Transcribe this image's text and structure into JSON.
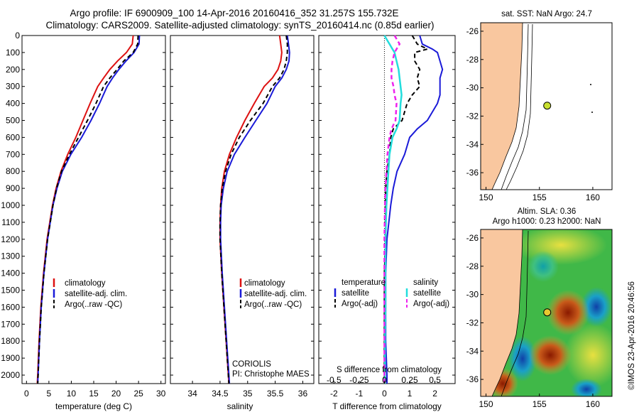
{
  "header": {
    "title_line1": "Argo profile: IF 6900909_100 14-Apr-2016 20160416_352 31.257S 155.732E",
    "title_line2": "Climatology: CARS2009. Satellite-adjusted climatology: synTS_20160414.nc (0.85d earlier)"
  },
  "colors": {
    "climatology": "#dd1111",
    "satellite": "#1a1ad8",
    "argo": "#000000",
    "cyan": "#22dddd",
    "magenta": "#ee22ee",
    "land": "#f9c79f"
  },
  "chart_data": [
    {
      "type": "line",
      "name": "temperature-profile",
      "xlabel": "temperature (deg C)",
      "xlim": [
        -1,
        31
      ],
      "xticks": [
        "0",
        "5",
        "10",
        "15",
        "20",
        "25",
        "30"
      ],
      "ylim": [
        0,
        2050
      ],
      "yticks": [
        "0",
        "100",
        "200",
        "300",
        "400",
        "500",
        "600",
        "700",
        "800",
        "900",
        "1000",
        "1100",
        "1200",
        "1300",
        "1400",
        "1500",
        "1600",
        "1700",
        "1800",
        "1900",
        "2000"
      ],
      "legend": [
        "climatology",
        "satellite-adj. clim.",
        "Argo(..raw -QC)"
      ],
      "depth": [
        0,
        50,
        100,
        150,
        200,
        250,
        300,
        400,
        500,
        600,
        700,
        800,
        900,
        1000,
        1200,
        1400,
        1600,
        1800,
        2000,
        2050
      ],
      "series": [
        {
          "name": "climatology",
          "values": [
            23.8,
            23.6,
            22.3,
            20.3,
            18.6,
            17.2,
            15.9,
            14.2,
            12.6,
            11.0,
            9.2,
            7.7,
            6.6,
            5.8,
            4.6,
            3.8,
            3.2,
            2.8,
            2.5,
            2.4
          ]
        },
        {
          "name": "satellite-adj. clim.",
          "values": [
            25.2,
            25.1,
            24.0,
            22.2,
            20.6,
            19.2,
            18.0,
            16.3,
            14.4,
            12.3,
            9.9,
            8.0,
            6.8,
            5.9,
            4.7,
            3.9,
            3.3,
            2.9,
            2.6,
            2.5
          ]
        },
        {
          "name": "Argo(..raw -QC)",
          "values": [
            24.9,
            24.8,
            23.8,
            21.7,
            20.2,
            18.6,
            17.2,
            15.5,
            13.6,
            11.6,
            9.6,
            7.8,
            6.7,
            5.9,
            4.7,
            3.9,
            3.3,
            2.9,
            2.6,
            2.5
          ]
        }
      ]
    },
    {
      "type": "line",
      "name": "salinity-profile",
      "xlabel": "salinity",
      "xlim": [
        33.6,
        36.2
      ],
      "xticks": [
        "34",
        "34.5",
        "35",
        "35.5",
        "36"
      ],
      "ylim": [
        0,
        2050
      ],
      "legend": [
        "climatology",
        "satellite-adj. clim.",
        "Argo(..raw -QC)"
      ],
      "annotation": [
        "CORIOLIS",
        "PI: Christophe MAES"
      ],
      "depth": [
        0,
        50,
        100,
        150,
        200,
        250,
        300,
        400,
        500,
        600,
        700,
        800,
        900,
        1000,
        1100,
        1200,
        1400,
        1600,
        1800,
        2000,
        2050
      ],
      "series": [
        {
          "name": "climatology",
          "values": [
            35.58,
            35.6,
            35.62,
            35.6,
            35.55,
            35.45,
            35.3,
            35.12,
            34.95,
            34.8,
            34.67,
            34.58,
            34.53,
            34.51,
            34.5,
            34.5,
            34.53,
            34.57,
            34.61,
            34.65,
            34.66
          ]
        },
        {
          "name": "satellite-adj. clim.",
          "values": [
            35.72,
            35.74,
            35.76,
            35.75,
            35.7,
            35.62,
            35.5,
            35.35,
            35.15,
            34.95,
            34.76,
            34.63,
            34.56,
            34.52,
            34.51,
            34.51,
            34.54,
            34.58,
            34.62,
            34.66,
            34.67
          ]
        },
        {
          "name": "Argo(..raw -QC)",
          "values": [
            35.7,
            35.72,
            35.72,
            35.7,
            35.66,
            35.58,
            35.45,
            35.28,
            35.05,
            34.85,
            34.7,
            34.6,
            34.54,
            34.51,
            34.5,
            34.5,
            34.53,
            34.57,
            34.61,
            34.65,
            34.66
          ]
        }
      ]
    },
    {
      "type": "line",
      "name": "difference-profile",
      "xlabel": "T difference from climatology",
      "xlabel_top": "S difference from climatology",
      "xlim": [
        -2.6,
        2.8
      ],
      "xticks": [
        "-2",
        "-1",
        "0",
        "1",
        "2"
      ],
      "sticks": [
        "-0.5",
        "-0.25",
        "0",
        "0.25",
        "0.5"
      ],
      "ylim": [
        0,
        2050
      ],
      "legend_titles": [
        "temperature",
        "salinity"
      ],
      "legend": [
        "satellite",
        "Argo(-adj)",
        "satellite",
        "Argo(-adj)"
      ],
      "depth": [
        0,
        50,
        80,
        100,
        150,
        200,
        250,
        300,
        350,
        400,
        500,
        550,
        600,
        700,
        800,
        900,
        1000,
        1200,
        1400,
        1600,
        1800,
        2000,
        2050
      ],
      "series": [
        {
          "name": "satellite",
          "quantity": "T",
          "values": [
            1.4,
            1.5,
            1.9,
            2.1,
            2.2,
            2.3,
            2.2,
            2.2,
            2.2,
            2.1,
            1.7,
            1.3,
            1.0,
            0.8,
            0.5,
            0.35,
            0.25,
            0.1,
            0.05,
            0.05,
            0.05,
            0.1,
            0.1
          ]
        },
        {
          "name": "Argo(-adj)",
          "quantity": "T",
          "values": [
            1.1,
            1.3,
            1.7,
            1.2,
            1.2,
            1.4,
            1.3,
            1.4,
            1.1,
            0.9,
            0.7,
            0.35,
            0.25,
            0.2,
            0.1,
            0.05,
            0.05,
            0.05,
            0.0,
            0.0,
            0.0,
            0.0,
            0.0
          ]
        },
        {
          "name": "satellite",
          "quantity": "S",
          "values": [
            0.0,
            0.05,
            0.08,
            0.1,
            0.12,
            0.14,
            0.15,
            0.16,
            0.17,
            0.16,
            0.15,
            0.12,
            0.08,
            0.05,
            0.04,
            0.03,
            0.02,
            0.01,
            0.01,
            0.01,
            0.005,
            0.005,
            0.005
          ]
        },
        {
          "name": "Argo(-adj)",
          "quantity": "S",
          "values": [
            0.1,
            0.15,
            0.12,
            0.1,
            0.08,
            0.07,
            0.07,
            0.09,
            0.1,
            0.12,
            0.11,
            0.07,
            0.05,
            0.03,
            0.02,
            0.01,
            0.005,
            0.0,
            0.0,
            0.0,
            0.0,
            0.0,
            0.0
          ]
        }
      ]
    },
    {
      "type": "scatter",
      "name": "sst-map",
      "title": "sat. SST: NaN Argo: 24.7",
      "xlim": [
        149.5,
        161.8
      ],
      "ylim": [
        -37.2,
        -25.4
      ],
      "xticks": [
        "150",
        "155",
        "160"
      ],
      "yticks": [
        "-26",
        "-28",
        "-30",
        "-32",
        "-34",
        "-36"
      ],
      "point": {
        "lon": 155.73,
        "lat": -31.26
      }
    },
    {
      "type": "heatmap",
      "name": "sla-map",
      "title_line1": "Altim. SLA: 0.36",
      "title_line2": "Argo h1000: 0.23 h2000: NaN",
      "xlim": [
        149.5,
        161.8
      ],
      "ylim": [
        -37.2,
        -25.4
      ],
      "xticks": [
        "150",
        "155",
        "160"
      ],
      "yticks": [
        "-26",
        "-28",
        "-30",
        "-32",
        "-34",
        "-36"
      ],
      "point": {
        "lon": 155.73,
        "lat": -31.26
      }
    }
  ],
  "credit": "©IMOS 23-Apr-2016 20:46:56"
}
